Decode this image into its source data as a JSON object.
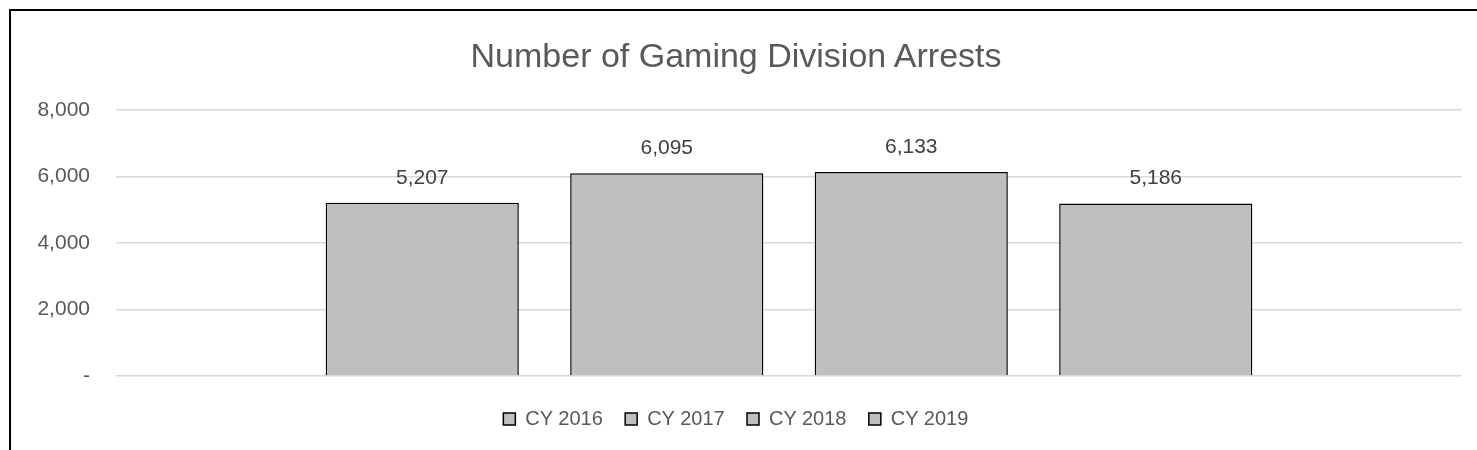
{
  "chart_data": {
    "type": "bar",
    "title": "Number of Gaming Division Arrests",
    "categories": [
      null
    ],
    "series": [
      {
        "name": "CY 2016",
        "color": "#bfbfbf",
        "values": [
          5207
        ],
        "value_labels": [
          "5,207"
        ]
      },
      {
        "name": "CY 2017",
        "color": "#bfbfbf",
        "values": [
          6095
        ],
        "value_labels": [
          "6,095"
        ]
      },
      {
        "name": "CY 2018",
        "color": "#bfbfbf",
        "values": [
          6133
        ],
        "value_labels": [
          "6,133"
        ]
      },
      {
        "name": "CY 2019",
        "color": "#bfbfbf",
        "values": [
          5186
        ],
        "value_labels": [
          "5,186"
        ]
      }
    ],
    "ylim": [
      0,
      8000
    ],
    "yticks": [
      {
        "value": 0,
        "label": "-"
      },
      {
        "value": 2000,
        "label": "2,000"
      },
      {
        "value": 4000,
        "label": "4,000"
      },
      {
        "value": 6000,
        "label": "6,000"
      },
      {
        "value": 8000,
        "label": "8,000"
      }
    ],
    "grid": "y",
    "legend": "bottom",
    "tick_labels": "y"
  }
}
